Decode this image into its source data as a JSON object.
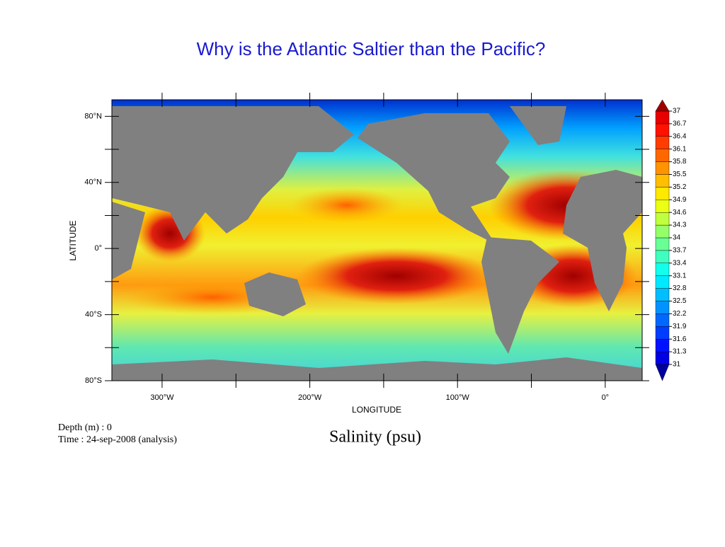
{
  "title": "Why is the Atlantic Saltier than the Pacific?",
  "map": {
    "type": "map",
    "xlabel": "LONGITUDE",
    "ylabel": "LATITUDE",
    "xlim": [
      -334,
      25
    ],
    "ylim": [
      -80,
      90
    ],
    "xticks": [
      {
        "value": -300,
        "label": "300°W"
      },
      {
        "value": -200,
        "label": "200°W"
      },
      {
        "value": -100,
        "label": "100°W"
      },
      {
        "value": 0,
        "label": "0°"
      }
    ],
    "xminorticks": [
      -250,
      -150,
      -50
    ],
    "yticks": [
      {
        "value": 80,
        "label": "80°N"
      },
      {
        "value": 40,
        "label": "40°N"
      },
      {
        "value": 0,
        "label": "0°"
      },
      {
        "value": -40,
        "label": "40°S"
      },
      {
        "value": -80,
        "label": "80°S"
      }
    ],
    "yminorticks": [
      60,
      20,
      -20,
      -60
    ],
    "colorbar": {
      "colormap": "jet",
      "levels": [
        31,
        31.3,
        31.6,
        31.9,
        32.2,
        32.5,
        32.8,
        33.1,
        33.4,
        33.7,
        34,
        34.3,
        34.6,
        34.9,
        35.2,
        35.5,
        35.8,
        36.1,
        36.4,
        36.7,
        37
      ]
    },
    "info": [
      "Depth (m) : 0",
      "Time : 24-sep-2008 (analysis)"
    ],
    "caption": "Salinity (psu)"
  }
}
